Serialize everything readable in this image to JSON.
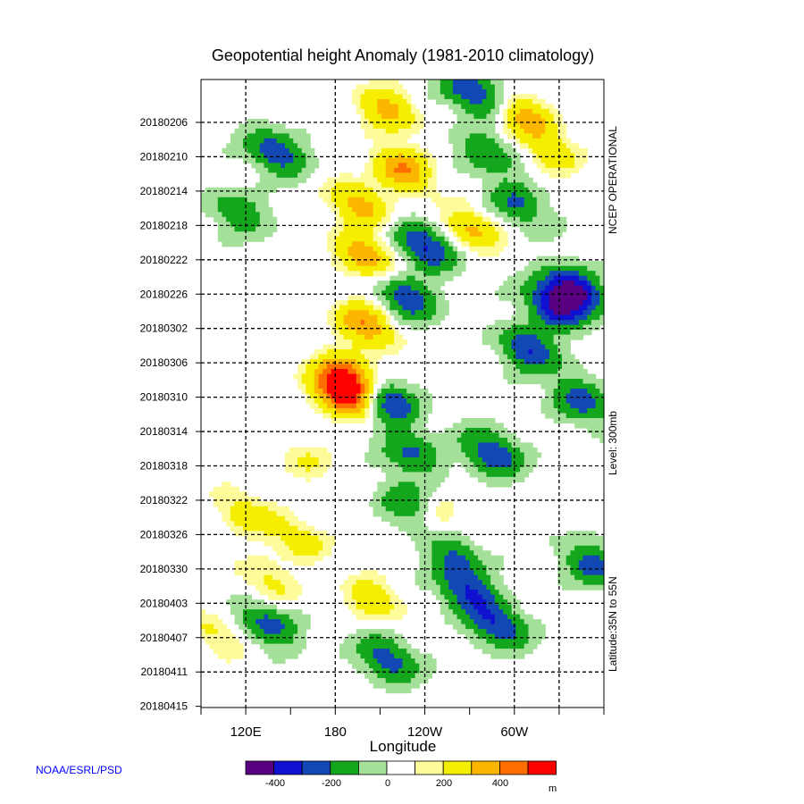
{
  "chart_data": {
    "type": "heatmap",
    "title": "Geopotential height Anomaly  (1981-2010 climatology)",
    "xlabel": "Longitude",
    "x_ticks": [
      "120E",
      "180",
      "120W",
      "60W"
    ],
    "y_ticks": [
      "20180206",
      "20180210",
      "20180214",
      "20180218",
      "20180222",
      "20180226",
      "20180302",
      "20180306",
      "20180310",
      "20180314",
      "20180318",
      "20180322",
      "20180326",
      "20180330",
      "20180403",
      "20180407",
      "20180411",
      "20180415"
    ],
    "right_labels": [
      "NCEP OPERATIONAL",
      "Level: 300mb",
      "Latitude:35N to 55N"
    ],
    "colorbar": {
      "ticks": [
        "-400",
        "-200",
        "0",
        "200",
        "400"
      ],
      "unit": "m",
      "colors": [
        "#58007f",
        "#1010d0",
        "#1248b4",
        "#14a61c",
        "#a4e09a",
        "#ffffff",
        "#fdfb9a",
        "#f5ee00",
        "#fdb600",
        "#fd6e00",
        "#fd0000"
      ]
    },
    "features": [
      {
        "lon": 185,
        "day": 36.5,
        "value": 480
      },
      {
        "lon": 190,
        "day": 34.5,
        "value": 310
      },
      {
        "lon": 200,
        "day": 28.5,
        "value": 300
      },
      {
        "lon": 200,
        "day": 20.5,
        "value": 280
      },
      {
        "lon": 195,
        "day": 14.5,
        "value": 250
      },
      {
        "lon": 225,
        "day": 10.5,
        "value": 300
      },
      {
        "lon": 215,
        "day": 3.5,
        "value": 240
      },
      {
        "lon": 272,
        "day": 17.5,
        "value": 220
      },
      {
        "lon": 308,
        "day": 4.5,
        "value": 240
      },
      {
        "lon": 325,
        "day": 8.5,
        "value": 150
      },
      {
        "lon": 140,
        "day": 8.5,
        "value": -280
      },
      {
        "lon": 115,
        "day": 15.5,
        "value": -180
      },
      {
        "lon": 240,
        "day": 19.5,
        "value": -330
      },
      {
        "lon": 228,
        "day": 25.5,
        "value": -280
      },
      {
        "lon": 272,
        "day": 1.5,
        "value": -300
      },
      {
        "lon": 282,
        "day": 8.5,
        "value": -190
      },
      {
        "lon": 302,
        "day": 14.5,
        "value": -210
      },
      {
        "lon": 340,
        "day": 24.5,
        "value": -420
      },
      {
        "lon": 327,
        "day": 26.5,
        "value": -360
      },
      {
        "lon": 310,
        "day": 31.5,
        "value": -300
      },
      {
        "lon": 345,
        "day": 37.5,
        "value": -250
      },
      {
        "lon": 215,
        "day": 37.5,
        "value": -320
      },
      {
        "lon": 230,
        "day": 43.5,
        "value": -220
      },
      {
        "lon": 230,
        "day": 49.5,
        "value": -240
      },
      {
        "lon": 285,
        "day": 43.5,
        "value": -290
      },
      {
        "lon": 268,
        "day": 59.5,
        "value": -280
      },
      {
        "lon": 288,
        "day": 63.5,
        "value": -300
      },
      {
        "lon": 135,
        "day": 63.5,
        "value": -250
      },
      {
        "lon": 215,
        "day": 67.5,
        "value": -260
      },
      {
        "lon": 352,
        "day": 56.5,
        "value": -240
      },
      {
        "lon": 260,
        "day": 55.5,
        "value": -200
      },
      {
        "lon": 120,
        "day": 50.5,
        "value": 160
      },
      {
        "lon": 155,
        "day": 53.5,
        "value": 150
      },
      {
        "lon": 205,
        "day": 60.5,
        "value": 170
      },
      {
        "lon": 135,
        "day": 58.5,
        "value": 130
      },
      {
        "lon": 245,
        "day": 50.5,
        "value": 140
      },
      {
        "lon": 160,
        "day": 44.5,
        "value": 100
      },
      {
        "lon": 100,
        "day": 64.5,
        "value": 120
      }
    ]
  },
  "footer": {
    "credit": "NOAA/ESRL/PSD"
  }
}
